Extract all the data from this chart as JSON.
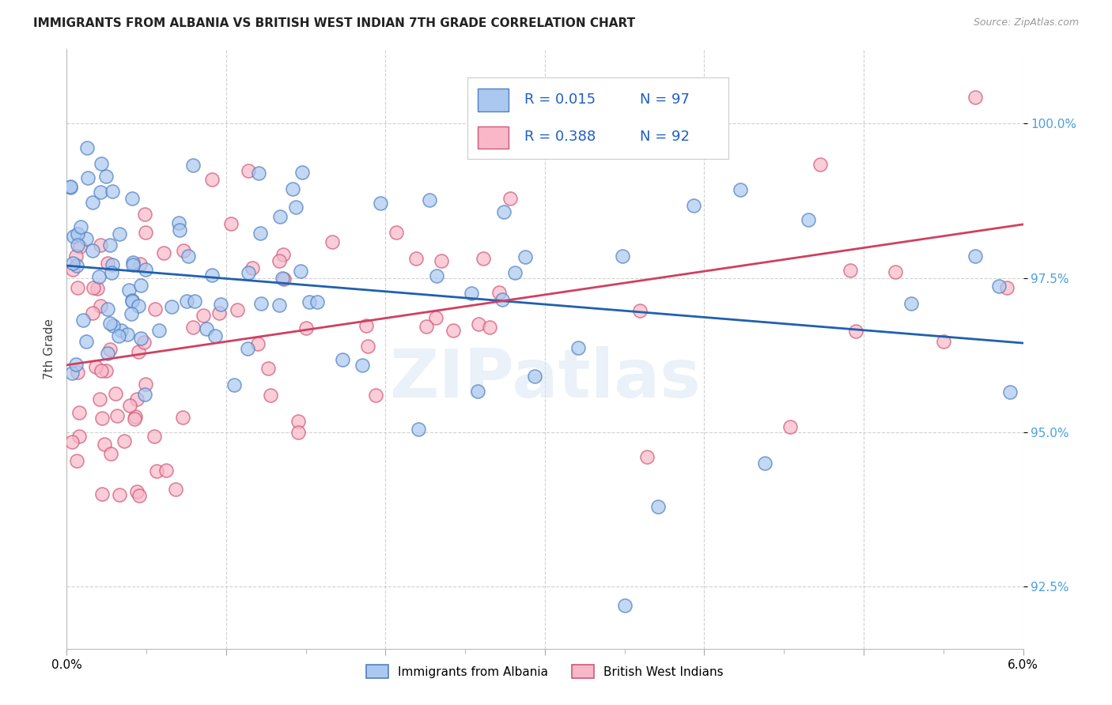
{
  "title": "IMMIGRANTS FROM ALBANIA VS BRITISH WEST INDIAN 7TH GRADE CORRELATION CHART",
  "source": "Source: ZipAtlas.com",
  "ylabel": "7th Grade",
  "ytick_labels": [
    "92.5%",
    "95.0%",
    "97.5%",
    "100.0%"
  ],
  "ytick_values": [
    92.5,
    95.0,
    97.5,
    100.0
  ],
  "xlim": [
    0.0,
    6.0
  ],
  "ylim": [
    91.5,
    101.2
  ],
  "legend_r1": "R = 0.015",
  "legend_n1": "N = 97",
  "legend_r2": "R = 0.388",
  "legend_n2": "N = 92",
  "color_albania_fill": "#aac8f0",
  "color_albania_edge": "#5080c0",
  "color_bwi_fill": "#f8b8c8",
  "color_bwi_edge": "#d05878",
  "color_albania_line": "#2060b0",
  "color_bwi_line": "#d04060",
  "color_ytick": "#4aa0e0",
  "color_legend_text": "#2060c0",
  "background": "#ffffff"
}
